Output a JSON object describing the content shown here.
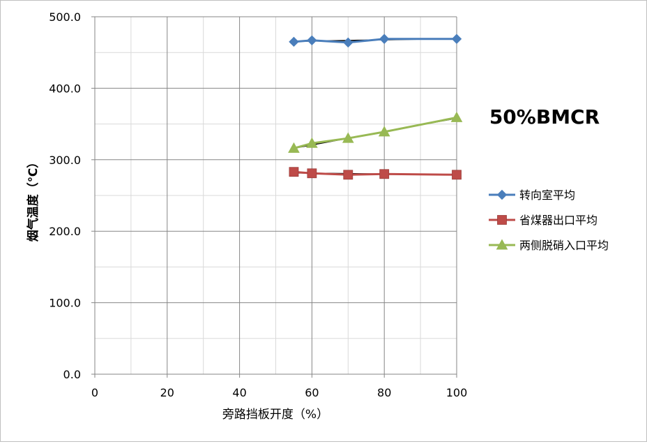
{
  "chart_data": {
    "type": "line",
    "title": "50%BMCR",
    "xlabel": "旁路挡板开度（%）",
    "ylabel": "烟气温度（℃）",
    "xlim": [
      0,
      100
    ],
    "ylim": [
      0,
      500
    ],
    "x_ticks": [
      0,
      20,
      40,
      60,
      80,
      100
    ],
    "x_tick_labels": [
      "0",
      "20",
      "40",
      "60",
      "80",
      "100"
    ],
    "y_ticks": [
      0,
      100,
      200,
      300,
      400,
      500
    ],
    "y_tick_labels": [
      "0.0",
      "100.0",
      "200.0",
      "300.0",
      "400.0",
      "500.0"
    ],
    "grid": true,
    "legend_position": "right",
    "series": [
      {
        "name": "转向室平均",
        "color": "#4a7ebb",
        "marker": "diamond",
        "x": [
          55,
          60,
          70,
          80,
          100
        ],
        "y": [
          465,
          467,
          464,
          469,
          469
        ],
        "trendline": {
          "x": [
            55,
            100
          ],
          "y": [
            465.5,
            469.5
          ]
        }
      },
      {
        "name": "省煤器出口平均",
        "color": "#be4b48",
        "marker": "square",
        "x": [
          55,
          60,
          70,
          80,
          100
        ],
        "y": [
          283,
          281,
          279,
          280,
          279
        ],
        "trendline": {
          "x": [
            55,
            100
          ],
          "y": [
            281.5,
            279.0
          ]
        }
      },
      {
        "name": "两侧脱硝入口平均",
        "color": "#98b954",
        "marker": "triangle",
        "x": [
          55,
          60,
          70,
          80,
          100
        ],
        "y": [
          316,
          323,
          330,
          339,
          359
        ],
        "trendline": {
          "x": [
            55,
            100
          ],
          "y": [
            316.0,
            358.0
          ]
        }
      }
    ]
  }
}
